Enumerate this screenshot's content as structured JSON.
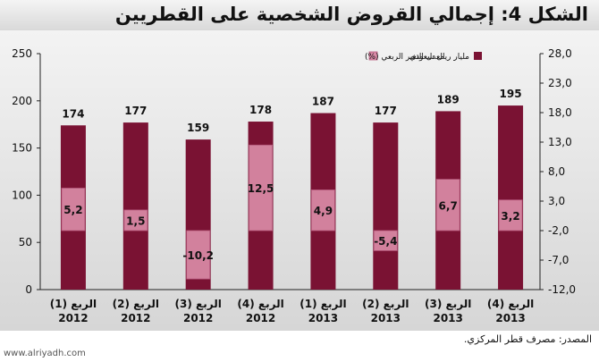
{
  "title": {
    "prefix": "الشكل 4:",
    "text": "إجمالي القروض الشخصية على القطريين"
  },
  "source_text": "المصدر: مصرف قطر المركزي.",
  "watermark": "www.alriyadh.com",
  "colors": {
    "bar": "#7a1233",
    "change": "#d98aa6",
    "change_edge": "#b85c7f",
    "panel_top": "#f3f3f3",
    "panel_bottom": "#d6d6d6"
  },
  "chart_data": {
    "type": "bar",
    "categories": [
      {
        "line1": "الربع (1)",
        "line2": "2012"
      },
      {
        "line1": "الربع (2)",
        "line2": "2012"
      },
      {
        "line1": "الربع (3)",
        "line2": "2012"
      },
      {
        "line1": "الربع (4)",
        "line2": "2012"
      },
      {
        "line1": "الربع (1)",
        "line2": "2013"
      },
      {
        "line1": "الربع (2)",
        "line2": "2013"
      },
      {
        "line1": "الربع (3)",
        "line2": "2013"
      },
      {
        "line1": "الربع (4)",
        "line2": "2013"
      }
    ],
    "series": [
      {
        "name": "مليار ريال سعودي",
        "axis": "left",
        "values": [
          174,
          177,
          159,
          178,
          187,
          177,
          189,
          195
        ],
        "labels": [
          "174",
          "177",
          "159",
          "178",
          "187",
          "177",
          "189",
          "195"
        ]
      },
      {
        "name": "معدل التغير الربعي (%)",
        "axis": "right",
        "values": [
          5.2,
          1.5,
          -10.2,
          12.5,
          4.9,
          -5.4,
          6.7,
          3.2
        ],
        "labels": [
          "5,2",
          "1,5",
          "-10,2",
          "12,5",
          "4,9",
          "-5,4",
          "6,7",
          "3,2"
        ]
      }
    ],
    "left_axis": {
      "min": 0,
      "max": 250,
      "ticks": [
        0,
        50,
        100,
        150,
        200,
        250
      ],
      "tick_labels": [
        "0",
        "50",
        "100",
        "150",
        "200",
        "250"
      ]
    },
    "right_axis": {
      "min": -12,
      "max": 28,
      "ticks": [
        -12,
        -7,
        -2,
        3,
        8,
        13,
        18,
        23,
        28
      ],
      "tick_labels": [
        "-12,0",
        "-7,0",
        "-2,0",
        "3,0",
        "8,0",
        "13,0",
        "18,0",
        "23,0",
        "28,0"
      ],
      "bar_baseline": -2
    },
    "legend_position": "top"
  }
}
